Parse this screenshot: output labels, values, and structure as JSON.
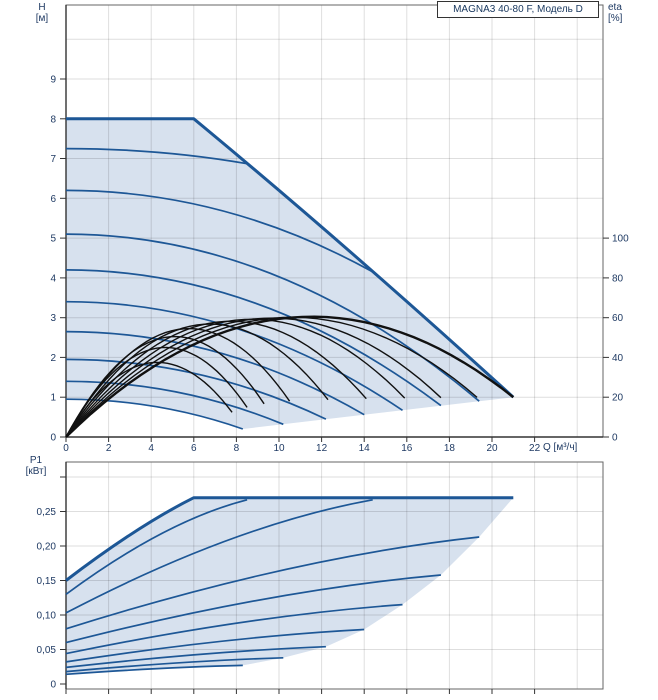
{
  "title": "MAGNA3 40-80 F, Модель D",
  "axes": {
    "h_symbol": "H",
    "h_unit": "[м]",
    "eta_symbol": "eta",
    "eta_unit": "[%]",
    "p1_symbol": "P1",
    "p1_unit": "[кВт]",
    "q_label": "Q [м³/ч]"
  },
  "colors": {
    "curve_blue": "#1d5796",
    "fill_blue": "#d7e1ee",
    "eta_black": "#111111",
    "grid": "rgba(0,0,0,0.13)",
    "frame": "#666666",
    "tick": "#333333",
    "text": "#1f3a63"
  },
  "chart_data": [
    {
      "type": "line",
      "id": "head-chart",
      "title": "MAGNA3 40-80 F, Модель D",
      "xlabel": "Q [м³/ч]",
      "ylabel": "H [м]",
      "y2label": "eta [%]",
      "xlim": [
        0,
        25.2
      ],
      "ylim": [
        0,
        10.85
      ],
      "y2lim": [
        0,
        110
      ],
      "grid": true,
      "q_ticks": [
        0,
        2,
        4,
        6,
        8,
        10,
        12,
        14,
        16,
        18,
        20,
        22
      ],
      "h_ticks": [
        0,
        1,
        2,
        3,
        4,
        5,
        6,
        7,
        8,
        9
      ],
      "eta_ticks": [
        0,
        20,
        40,
        60,
        80,
        100
      ],
      "envelope": {
        "h_max": 8,
        "flat_to_q": 6,
        "end_q": 21,
        "end_h": 1
      },
      "min_curve_end": {
        "q": 8.3,
        "h": 0.2
      },
      "speed_curves": [
        {
          "h0": 7.25,
          "qe": 8.5,
          "he": 6.87
        },
        {
          "h0": 6.2,
          "qe": 14.4,
          "he": 4.15
        },
        {
          "h0": 5.1,
          "qe": 19.4,
          "he": 0.9
        },
        {
          "h0": 4.2,
          "qe": 17.6,
          "he": 0.79
        },
        {
          "h0": 3.4,
          "qe": 15.8,
          "he": 0.67
        },
        {
          "h0": 2.65,
          "qe": 14.0,
          "he": 0.56
        },
        {
          "h0": 1.95,
          "qe": 12.2,
          "he": 0.45
        },
        {
          "h0": 1.4,
          "qe": 10.2,
          "he": 0.32
        },
        {
          "h0": 0.95,
          "qe": 8.3,
          "he": 0.2
        }
      ],
      "eta_curves": [
        {
          "peak": 60.5,
          "q_end": 21.0
        },
        {
          "peak": 60.2,
          "q_end": 19.3
        },
        {
          "peak": 59.8,
          "q_end": 17.6
        },
        {
          "peak": 59.2,
          "q_end": 15.9
        },
        {
          "peak": 58.2,
          "q_end": 14.1
        },
        {
          "peak": 56.8,
          "q_end": 12.3
        },
        {
          "peak": 54.5,
          "q_end": 10.5
        },
        {
          "peak": 50.5,
          "q_end": 9.3
        },
        {
          "peak": 45.0,
          "q_end": 8.5
        },
        {
          "peak": 37.5,
          "q_end": 7.8
        }
      ]
    },
    {
      "type": "line",
      "id": "power-chart",
      "ylabel": "P1 [кВт]",
      "ylim": [
        0,
        0.33
      ],
      "grid": true,
      "p_tick_values": [
        0,
        0.05,
        0.1,
        0.15,
        0.2,
        0.25,
        0.3
      ],
      "p_tick_labels": [
        "0",
        "0,05",
        "0,10",
        "0,15",
        "0,20",
        "0,25",
        ""
      ],
      "power_limit": {
        "p": 0.27,
        "p0": 0.15,
        "flat_from_q": 6,
        "flat_to_q": 21
      },
      "power_curves": [
        {
          "p0": 0.13,
          "qe": 8.5,
          "pe": 0.267
        },
        {
          "p0": 0.103,
          "qe": 14.4,
          "pe": 0.267
        },
        {
          "p0": 0.08,
          "qe": 19.4,
          "pe": 0.213
        },
        {
          "p0": 0.06,
          "qe": 17.6,
          "pe": 0.158
        },
        {
          "p0": 0.044,
          "qe": 15.8,
          "pe": 0.115
        },
        {
          "p0": 0.032,
          "qe": 14.0,
          "pe": 0.079
        },
        {
          "p0": 0.024,
          "qe": 12.2,
          "pe": 0.054
        },
        {
          "p0": 0.018,
          "qe": 10.2,
          "pe": 0.038
        },
        {
          "p0": 0.014,
          "qe": 8.3,
          "pe": 0.027
        }
      ]
    }
  ]
}
